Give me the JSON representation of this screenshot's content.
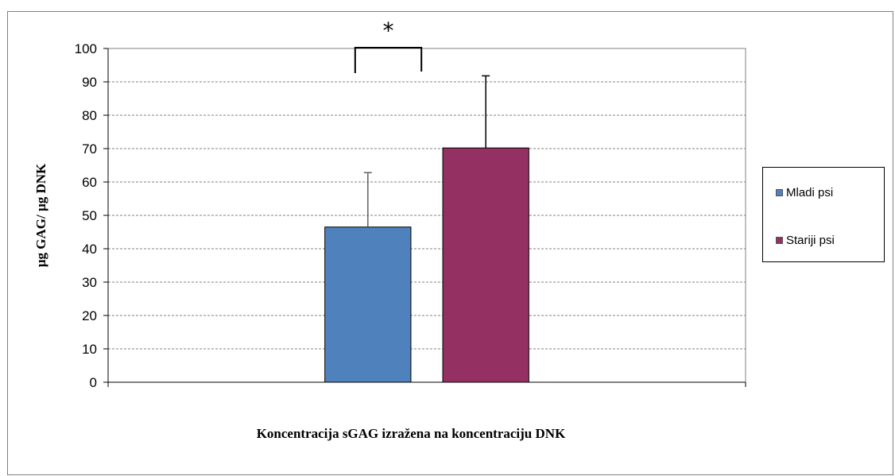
{
  "chart_data": {
    "type": "bar",
    "categories": [
      ""
    ],
    "series": [
      {
        "name": "Mladi psi",
        "values": [
          46.5
        ],
        "error": [
          16.3
        ],
        "color": "#4f81bd"
      },
      {
        "name": "Stariji psi",
        "values": [
          70.2
        ],
        "error": [
          21.6
        ],
        "color": "#953162"
      }
    ],
    "title": "",
    "xlabel": "Koncentracija sGAG izražena na koncentraciju DNK",
    "ylabel": "µg GAG/ µg DNK",
    "ylim": [
      0,
      100
    ],
    "yticks": [
      "0",
      "10",
      "20",
      "30",
      "40",
      "50",
      "60",
      "70",
      "80",
      "90",
      "100"
    ],
    "grid": true,
    "grid_style": "dashed",
    "legend_position": "right",
    "annotations": [
      {
        "text": "*",
        "type": "significance-bracket"
      }
    ]
  }
}
